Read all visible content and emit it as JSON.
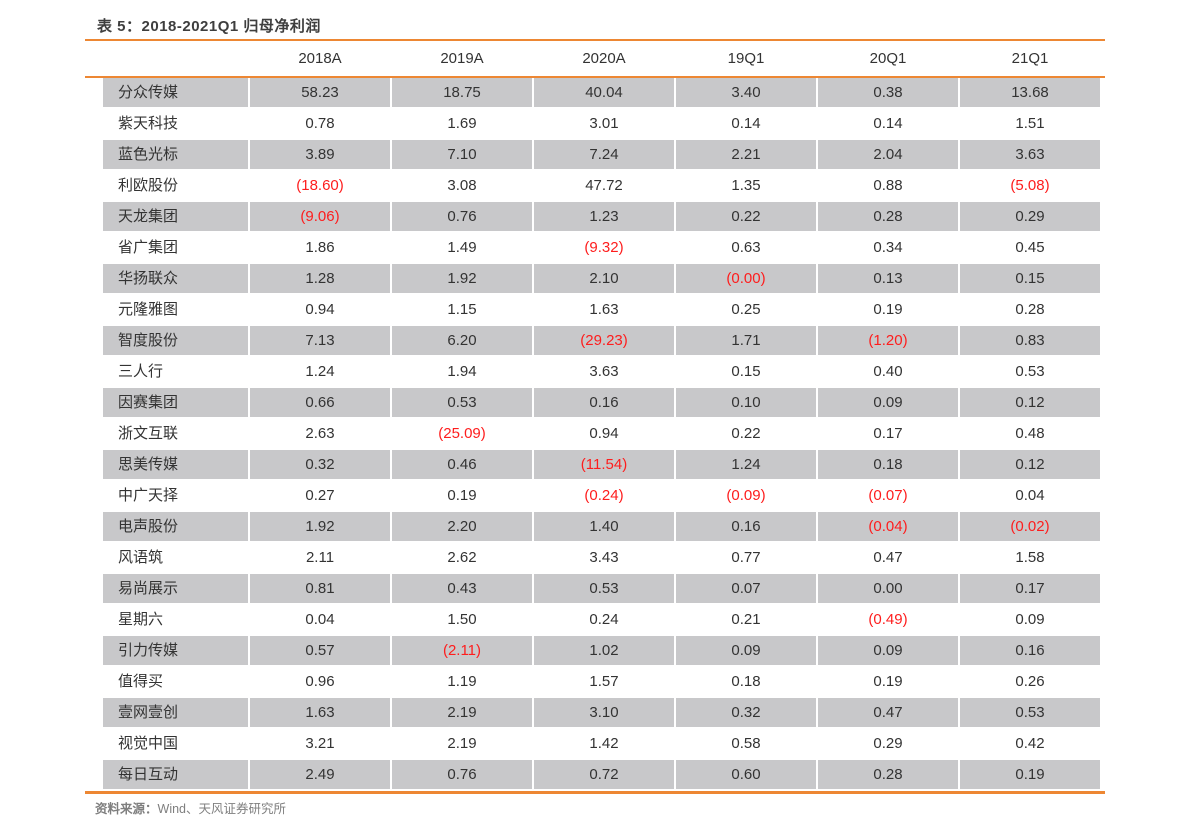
{
  "table": {
    "title": "表 5：2018-2021Q1 归母净利润",
    "columns": [
      "2018A",
      "2019A",
      "2020A",
      "19Q1",
      "20Q1",
      "21Q1"
    ],
    "rows": [
      {
        "name": "分众传媒",
        "values": [
          "58.23",
          "18.75",
          "40.04",
          "3.40",
          "0.38",
          "13.68"
        ]
      },
      {
        "name": "紫天科技",
        "values": [
          "0.78",
          "1.69",
          "3.01",
          "0.14",
          "0.14",
          "1.51"
        ]
      },
      {
        "name": "蓝色光标",
        "values": [
          "3.89",
          "7.10",
          "7.24",
          "2.21",
          "2.04",
          "3.63"
        ]
      },
      {
        "name": "利欧股份",
        "values": [
          "(18.60)",
          "3.08",
          "47.72",
          "1.35",
          "0.88",
          "(5.08)"
        ]
      },
      {
        "name": "天龙集团",
        "values": [
          "(9.06)",
          "0.76",
          "1.23",
          "0.22",
          "0.28",
          "0.29"
        ]
      },
      {
        "name": "省广集团",
        "values": [
          "1.86",
          "1.49",
          "(9.32)",
          "0.63",
          "0.34",
          "0.45"
        ]
      },
      {
        "name": "华扬联众",
        "values": [
          "1.28",
          "1.92",
          "2.10",
          "(0.00)",
          "0.13",
          "0.15"
        ]
      },
      {
        "name": "元隆雅图",
        "values": [
          "0.94",
          "1.15",
          "1.63",
          "0.25",
          "0.19",
          "0.28"
        ]
      },
      {
        "name": "智度股份",
        "values": [
          "7.13",
          "6.20",
          "(29.23)",
          "1.71",
          "(1.20)",
          "0.83"
        ]
      },
      {
        "name": "三人行",
        "values": [
          "1.24",
          "1.94",
          "3.63",
          "0.15",
          "0.40",
          "0.53"
        ]
      },
      {
        "name": "因赛集团",
        "values": [
          "0.66",
          "0.53",
          "0.16",
          "0.10",
          "0.09",
          "0.12"
        ]
      },
      {
        "name": "浙文互联",
        "values": [
          "2.63",
          "(25.09)",
          "0.94",
          "0.22",
          "0.17",
          "0.48"
        ]
      },
      {
        "name": "思美传媒",
        "values": [
          "0.32",
          "0.46",
          "(11.54)",
          "1.24",
          "0.18",
          "0.12"
        ]
      },
      {
        "name": "中广天择",
        "values": [
          "0.27",
          "0.19",
          "(0.24)",
          "(0.09)",
          "(0.07)",
          "0.04"
        ]
      },
      {
        "name": "电声股份",
        "values": [
          "1.92",
          "2.20",
          "1.40",
          "0.16",
          "(0.04)",
          "(0.02)"
        ]
      },
      {
        "name": "风语筑",
        "values": [
          "2.11",
          "2.62",
          "3.43",
          "0.77",
          "0.47",
          "1.58"
        ]
      },
      {
        "name": "易尚展示",
        "values": [
          "0.81",
          "0.43",
          "0.53",
          "0.07",
          "0.00",
          "0.17"
        ]
      },
      {
        "name": "星期六",
        "values": [
          "0.04",
          "1.50",
          "0.24",
          "0.21",
          "(0.49)",
          "0.09"
        ]
      },
      {
        "name": "引力传媒",
        "values": [
          "0.57",
          "(2.11)",
          "1.02",
          "0.09",
          "0.09",
          "0.16"
        ]
      },
      {
        "name": "值得买",
        "values": [
          "0.96",
          "1.19",
          "1.57",
          "0.18",
          "0.19",
          "0.26"
        ]
      },
      {
        "name": "壹网壹创",
        "values": [
          "1.63",
          "2.19",
          "3.10",
          "0.32",
          "0.47",
          "0.53"
        ]
      },
      {
        "name": "视觉中国",
        "values": [
          "3.21",
          "2.19",
          "1.42",
          "0.58",
          "0.29",
          "0.42"
        ]
      },
      {
        "name": "每日互动",
        "values": [
          "2.49",
          "0.76",
          "0.72",
          "0.60",
          "0.28",
          "0.19"
        ]
      }
    ]
  },
  "footer": {
    "source_label": "资料来源：",
    "source_text": "Wind、天风证券研究所"
  },
  "colors": {
    "accent_orange": "#ED8733",
    "stripe_gray": "#C8C8CA",
    "negative_red": "#FE1D1D"
  }
}
